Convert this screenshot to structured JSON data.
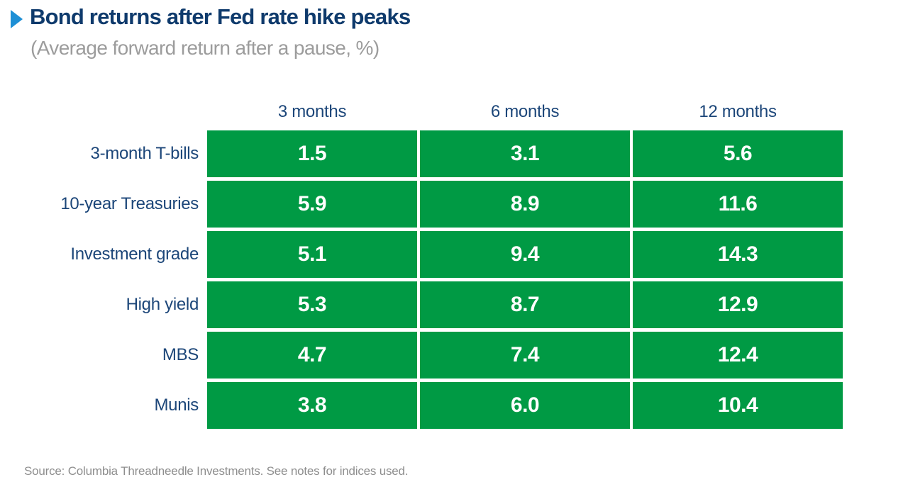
{
  "header": {
    "title": "Bond returns after Fed rate hike peaks",
    "subtitle": "(Average forward return after a pause, %)"
  },
  "chart_data": {
    "type": "table",
    "title": "Bond returns after Fed rate hike peaks",
    "subtitle": "(Average forward return after a pause, %)",
    "unit": "percent",
    "columns": [
      "3 months",
      "6 months",
      "12 months"
    ],
    "rows": [
      {
        "label": "3-month T-bills",
        "values": [
          "1.5",
          "3.1",
          "5.6"
        ]
      },
      {
        "label": "10-year Treasuries",
        "values": [
          "5.9",
          "8.9",
          "11.6"
        ]
      },
      {
        "label": "Investment grade",
        "values": [
          "5.1",
          "9.4",
          "14.3"
        ]
      },
      {
        "label": "High yield",
        "values": [
          "5.3",
          "8.7",
          "12.9"
        ]
      },
      {
        "label": "MBS",
        "values": [
          "4.7",
          "7.4",
          "12.4"
        ]
      },
      {
        "label": "Munis",
        "values": [
          "3.8",
          "6.0",
          "10.4"
        ]
      }
    ],
    "legend_position": "none",
    "grid": "off"
  },
  "source": "Source: Columbia Threadneedle Investments. See notes for indices used.",
  "colors": {
    "title_navy": "#0E3A6C",
    "label_navy": "#1C4679",
    "subtitle_gray": "#9C9C9C",
    "source_gray": "#8E8E8E",
    "green": "#009A44",
    "value_white": "#FFFFFF",
    "arrow_blue": "#1E8FD5"
  }
}
